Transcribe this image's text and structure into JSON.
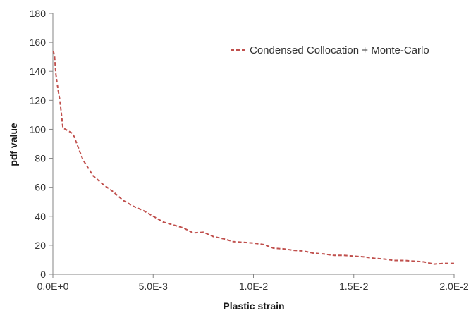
{
  "chart_data": {
    "type": "line",
    "title": "",
    "xlabel": "Plastic strain",
    "ylabel": "pdf value",
    "xlim": [
      0,
      0.02
    ],
    "ylim": [
      0,
      180
    ],
    "grid": false,
    "legend_position": "top-right",
    "x_ticks": [
      0,
      0.005,
      0.01,
      0.015,
      0.02
    ],
    "x_tick_labels": [
      "0.0E+0",
      "5.0E-3",
      "1.0E-2",
      "1.5E-2",
      "2.0E-2"
    ],
    "y_ticks": [
      0,
      20,
      40,
      60,
      80,
      100,
      120,
      140,
      160,
      180
    ],
    "y_tick_labels": [
      "0",
      "20",
      "40",
      "60",
      "80",
      "100",
      "120",
      "140",
      "160",
      "180"
    ],
    "series": [
      {
        "name": "Condensed Collocation + Monte-Carlo",
        "color": "#c0504d",
        "line_style": "dashed",
        "x": [
          2e-05,
          8e-05,
          0.00015,
          0.00025,
          0.00035,
          0.0005,
          0.001,
          0.0015,
          0.002,
          0.0025,
          0.003,
          0.0035,
          0.004,
          0.0045,
          0.005,
          0.0055,
          0.006,
          0.0065,
          0.007,
          0.0075,
          0.008,
          0.0085,
          0.009,
          0.0095,
          0.01,
          0.0105,
          0.011,
          0.0115,
          0.012,
          0.0125,
          0.013,
          0.0135,
          0.014,
          0.0145,
          0.015,
          0.0155,
          0.016,
          0.0165,
          0.017,
          0.0175,
          0.018,
          0.0185,
          0.019,
          0.0195,
          0.02
        ],
        "y": [
          154,
          151,
          138,
          128,
          120,
          101,
          97,
          79,
          68,
          62,
          57,
          51,
          47,
          44,
          40,
          36,
          34,
          32,
          28.5,
          29,
          26,
          24.5,
          22.5,
          22,
          21.5,
          20.5,
          18,
          17.5,
          16.5,
          16,
          14.5,
          14,
          13,
          13,
          12.5,
          12,
          11,
          10.5,
          9.5,
          9.5,
          9,
          8.5,
          7,
          7.5,
          7.5
        ]
      }
    ]
  }
}
